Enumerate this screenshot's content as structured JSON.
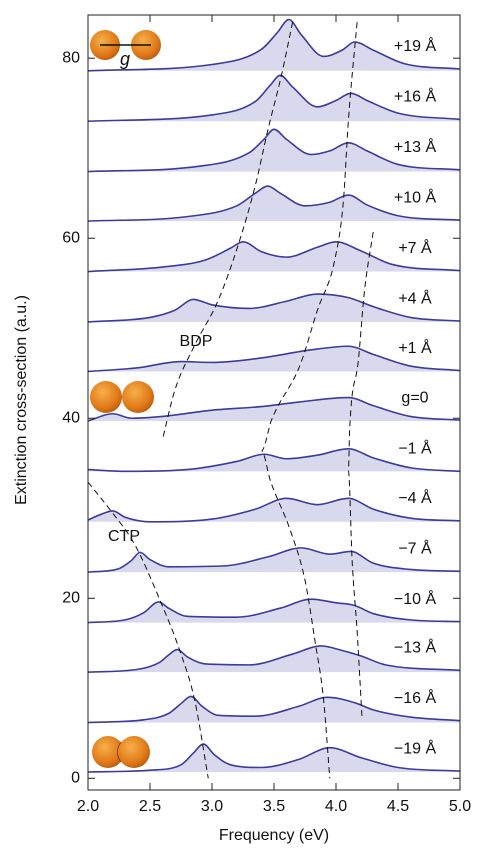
{
  "chart_data": {
    "type": "waterfall",
    "xlabel": "Frequency (eV)",
    "ylabel": "Extinction cross-section (a.u.)",
    "xlim": [
      2.0,
      5.0
    ],
    "ylim": [
      -1.3,
      84.8
    ],
    "xticks": [
      {
        "value": 2,
        "label": "2.0"
      },
      {
        "value": 2.5,
        "label": "2.5"
      },
      {
        "value": 3,
        "label": "3.0"
      },
      {
        "value": 3.5,
        "label": "3.5"
      },
      {
        "value": 4,
        "label": "4.0"
      },
      {
        "value": 4.5,
        "label": "4.5"
      },
      {
        "value": 5,
        "label": "5.0"
      }
    ],
    "yticks": [
      0,
      20,
      40,
      60,
      80
    ],
    "line_color": "#3b3b9c",
    "fill_color": "#d9d9ee",
    "track_color": "#111111",
    "annotations": [
      "BDP",
      "CTP"
    ],
    "icon_label": "g",
    "series": [
      {
        "name": "−19 Å",
        "x": [
          2.0,
          2.5,
          2.75,
          2.85,
          2.93,
          3.02,
          3.15,
          3.4,
          3.7,
          3.95,
          4.2,
          4.5,
          5.0
        ],
        "values": [
          0.7,
          0.9,
          1.5,
          2.8,
          3.8,
          2.6,
          1.5,
          1.2,
          2.1,
          3.4,
          2.3,
          1.2,
          0.8
        ]
      },
      {
        "name": "−16 Å",
        "x": [
          2.0,
          2.45,
          2.65,
          2.75,
          2.83,
          2.92,
          3.05,
          3.35,
          3.7,
          3.93,
          4.15,
          4.3,
          4.6,
          5.0
        ],
        "values": [
          6.2,
          6.5,
          7.2,
          8.3,
          9.1,
          8.0,
          7.0,
          6.9,
          8.0,
          9.0,
          8.4,
          7.6,
          6.8,
          6.4
        ]
      },
      {
        "name": "−13 Å",
        "x": [
          2.0,
          2.4,
          2.58,
          2.65,
          2.72,
          2.8,
          2.95,
          3.3,
          3.65,
          3.88,
          4.05,
          4.2,
          4.4,
          5.0
        ],
        "values": [
          11.8,
          12.1,
          12.9,
          13.7,
          14.3,
          13.5,
          12.7,
          12.6,
          13.8,
          14.7,
          14.2,
          13.6,
          12.6,
          12.0
        ]
      },
      {
        "name": "−10 Å",
        "x": [
          2.0,
          2.3,
          2.45,
          2.57,
          2.65,
          2.8,
          3.2,
          3.55,
          3.8,
          4.0,
          4.15,
          4.3,
          4.6,
          5.0
        ],
        "values": [
          17.3,
          17.6,
          18.4,
          19.6,
          18.9,
          18.0,
          17.9,
          18.9,
          19.9,
          19.5,
          19.2,
          18.3,
          17.6,
          17.4
        ]
      },
      {
        "name": "−7 Å",
        "x": [
          2.0,
          2.25,
          2.35,
          2.42,
          2.5,
          2.65,
          3.1,
          3.45,
          3.72,
          3.95,
          4.12,
          4.3,
          4.6,
          5.0
        ],
        "values": [
          22.9,
          23.3,
          24.2,
          25.1,
          24.3,
          23.5,
          23.6,
          24.6,
          25.6,
          24.9,
          25.2,
          23.9,
          23.2,
          23.0
        ]
      },
      {
        "name": "−4 Å",
        "x": [
          2.0,
          2.1,
          2.2,
          2.3,
          2.5,
          3.0,
          3.35,
          3.6,
          3.85,
          4.1,
          4.3,
          4.6,
          5.0
        ],
        "values": [
          28.7,
          29.3,
          29.7,
          29.0,
          28.5,
          28.8,
          29.9,
          31.1,
          30.4,
          31.1,
          29.9,
          28.9,
          28.6
        ]
      },
      {
        "name": "−1 Å",
        "x": [
          2.0,
          2.3,
          2.8,
          3.2,
          3.42,
          3.6,
          3.85,
          4.1,
          4.3,
          4.6,
          5.0
        ],
        "values": [
          34.3,
          34.1,
          34.3,
          35.2,
          36.0,
          35.5,
          35.9,
          36.6,
          35.6,
          34.5,
          34.1
        ]
      },
      {
        "name": "g=0",
        "x": [
          2.0,
          2.2,
          2.35,
          2.6,
          3.0,
          3.4,
          3.7,
          4.1,
          4.3,
          4.6,
          5.0
        ],
        "values": [
          39.7,
          40.5,
          40.0,
          40.2,
          40.9,
          41.3,
          41.8,
          42.3,
          41.4,
          40.2,
          39.8
        ]
      },
      {
        "name": "+1 Å",
        "x": [
          2.0,
          2.4,
          2.75,
          3.0,
          3.4,
          3.8,
          4.1,
          4.3,
          4.6,
          5.0
        ],
        "values": [
          45.2,
          45.6,
          46.3,
          46.2,
          46.7,
          47.6,
          48.0,
          47.1,
          45.8,
          45.3
        ]
      },
      {
        "name": "+4 Å",
        "x": [
          2.0,
          2.5,
          2.7,
          2.85,
          3.0,
          3.3,
          3.6,
          3.85,
          4.1,
          4.3,
          4.6,
          5.0
        ],
        "values": [
          50.7,
          51.2,
          52.0,
          53.2,
          52.6,
          52.2,
          53.0,
          53.8,
          53.4,
          52.4,
          51.2,
          50.8
        ]
      },
      {
        "name": "+7 Å",
        "x": [
          2.0,
          2.6,
          2.95,
          3.15,
          3.25,
          3.4,
          3.6,
          3.85,
          4.0,
          4.2,
          4.45,
          5.0
        ],
        "values": [
          56.3,
          56.8,
          57.6,
          58.9,
          59.6,
          58.5,
          57.9,
          59.0,
          59.6,
          58.6,
          57.1,
          56.4
        ]
      },
      {
        "name": "+10 Å",
        "x": [
          2.0,
          2.8,
          3.2,
          3.35,
          3.45,
          3.55,
          3.75,
          3.95,
          4.1,
          4.25,
          4.5,
          5.0
        ],
        "values": [
          61.9,
          62.4,
          63.6,
          65.0,
          65.8,
          65.0,
          63.6,
          64.0,
          64.8,
          63.7,
          62.5,
          62.0
        ]
      },
      {
        "name": "+13 Å",
        "x": [
          2.0,
          2.9,
          3.3,
          3.42,
          3.5,
          3.6,
          3.8,
          3.95,
          4.1,
          4.25,
          4.5,
          5.0
        ],
        "values": [
          67.4,
          68.0,
          69.5,
          71.0,
          72.1,
          71.0,
          69.3,
          69.7,
          70.6,
          69.7,
          68.2,
          67.6
        ]
      },
      {
        "name": "+16 Å",
        "x": [
          2.0,
          3.0,
          3.35,
          3.47,
          3.55,
          3.65,
          3.85,
          4.0,
          4.12,
          4.25,
          4.5,
          5.0
        ],
        "values": [
          73.0,
          73.7,
          75.2,
          77.0,
          78.1,
          76.8,
          74.6,
          75.3,
          76.1,
          75.3,
          73.9,
          73.2
        ]
      },
      {
        "name": "+19 Å",
        "x": [
          2.0,
          3.0,
          3.4,
          3.53,
          3.62,
          3.72,
          3.9,
          4.05,
          4.15,
          4.3,
          4.55,
          5.0
        ],
        "values": [
          78.6,
          79.3,
          81.0,
          82.9,
          84.3,
          82.6,
          80.2,
          80.9,
          81.8,
          80.9,
          79.4,
          78.8
        ]
      }
    ],
    "peak_tracks": [
      {
        "x": [
          3.65,
          3.56,
          3.45,
          3.35,
          3.21,
          3.05,
          2.86,
          2.7,
          2.6
        ],
        "values": [
          84.0,
          78.1,
          72.0,
          65.9,
          59.2,
          53.1,
          48.1,
          43.1,
          37.6
        ]
      },
      {
        "x": [
          4.17,
          4.1,
          4.06,
          3.99,
          3.85,
          3.71,
          3.48,
          3.4,
          3.47,
          3.63,
          3.75,
          3.83,
          3.9,
          3.95
        ],
        "values": [
          84.0,
          73.1,
          64.2,
          57.6,
          52.0,
          45.9,
          39.8,
          36.4,
          33.1,
          27.6,
          22.0,
          15.3,
          8.7,
          0.0
        ]
      },
      {
        "x": [
          4.3,
          4.23,
          4.18,
          4.11,
          4.1,
          4.13,
          4.17,
          4.21
        ],
        "values": [
          60.7,
          54.2,
          46.4,
          38.7,
          34.2,
          24.2,
          16.4,
          6.7
        ]
      },
      {
        "x": [
          2.0,
          2.18,
          2.38,
          2.58,
          2.74,
          2.86,
          2.97
        ],
        "values": [
          32.9,
          29.8,
          25.9,
          19.8,
          14.2,
          8.7,
          0.0
        ]
      }
    ]
  }
}
